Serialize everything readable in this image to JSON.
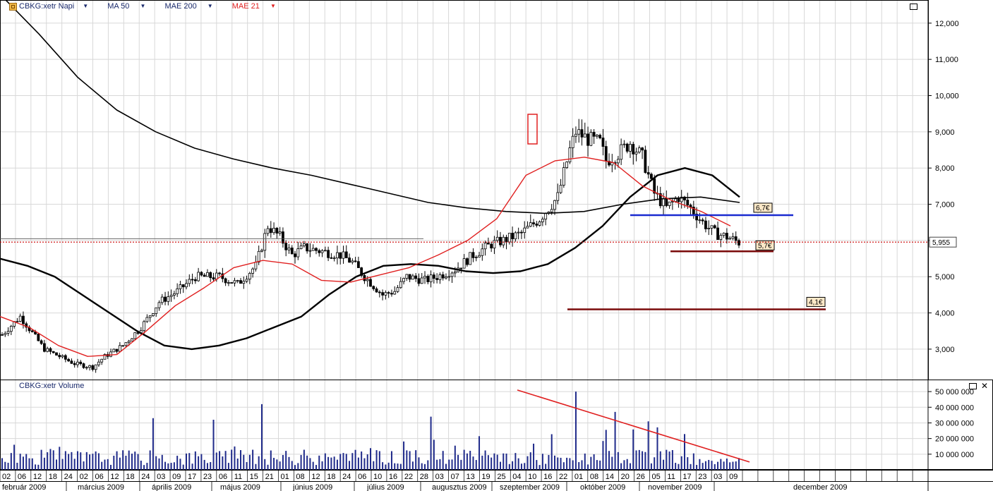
{
  "legend": {
    "ticker": "CBKG:xetr Napi",
    "ma50": "MA 50",
    "mae200": "MAE 200",
    "mae21": "MAE 21",
    "volume_title": "CBKG:xetr Volume"
  },
  "colors": {
    "candle": "#000000",
    "ma50": "#000000",
    "mae200": "#000000",
    "mae21": "#e02020",
    "volume": "#1f2a8a",
    "trend": "#e02020",
    "blue_level": "#1a2ad0",
    "dark_red_level": "#7a0a0a",
    "current_price_line": "#cc0000",
    "grid": "#d8d8d8"
  },
  "chart_data": [
    {
      "type": "candlestick",
      "name": "price",
      "y_ticks": [
        "12,000",
        "11,000",
        "10,000",
        "9,000",
        "8,000",
        "7,000",
        "6,000",
        "5,000",
        "4,000",
        "3,000"
      ],
      "y_tick_values": [
        12,
        11,
        10,
        9,
        8,
        7,
        6,
        5,
        4,
        3
      ],
      "ylim": [
        2.2,
        12.6
      ],
      "current_price_label": "5,955",
      "current_price": 5.955,
      "x_day_labels": [
        "02",
        "06",
        "12",
        "18",
        "24",
        "02",
        "06",
        "12",
        "18",
        "24",
        "03",
        "09",
        "17",
        "23",
        "06",
        "11",
        "15",
        "21",
        "01",
        "08",
        "12",
        "18",
        "24",
        "06",
        "10",
        "16",
        "22",
        "28",
        "03",
        "07",
        "13",
        "19",
        "25",
        "04",
        "10",
        "16",
        "22",
        "01",
        "08",
        "14",
        "20",
        "26",
        "05",
        "11",
        "17",
        "23",
        "03",
        "09"
      ],
      "x_month_labels": [
        "február 2009",
        "március 2009",
        "április 2009",
        "május 2009",
        "június 2009",
        "július 2009",
        "augusztus 2009",
        "szeptember 2009",
        "október 2009",
        "november 2009",
        "december 2009"
      ],
      "ma_50": [
        5.5,
        5.3,
        5.0,
        4.5,
        4.0,
        3.5,
        3.1,
        3.0,
        3.1,
        3.3,
        3.6,
        3.9,
        4.5,
        5.0,
        5.3,
        5.35,
        5.3,
        5.15,
        5.1,
        5.15,
        5.35,
        5.8,
        6.4,
        7.2,
        7.8,
        8.0,
        7.8,
        7.2
      ],
      "mae_200": [
        12.8,
        11.7,
        10.5,
        9.6,
        9.0,
        8.55,
        8.25,
        8.0,
        7.8,
        7.55,
        7.3,
        7.05,
        6.9,
        6.8,
        6.75,
        6.8,
        7.0,
        7.15,
        7.2,
        7.05
      ],
      "mae_21": [
        3.9,
        3.6,
        3.1,
        2.8,
        2.85,
        3.5,
        4.2,
        4.7,
        5.25,
        5.45,
        5.35,
        4.9,
        4.85,
        5.05,
        5.25,
        5.6,
        6.0,
        6.6,
        7.8,
        8.2,
        8.3,
        8.15,
        7.5,
        7.1,
        6.8,
        6.4
      ],
      "annotations": [
        {
          "label": "6,7€",
          "value": 6.7,
          "color": "#1a2ad0"
        },
        {
          "label": "5,7€",
          "value": 5.7,
          "color": "#7a0a0a"
        },
        {
          "label": "4,1€",
          "value": 4.1,
          "color": "#7a0a0a"
        }
      ]
    },
    {
      "type": "bar",
      "name": "volume",
      "y_ticks": [
        "50 000 000",
        "40 000 000",
        "30 000 000",
        "20 000 000",
        "10 000 000"
      ],
      "y_tick_values": [
        50000000,
        40000000,
        30000000,
        20000000,
        10000000
      ],
      "ylim": [
        0,
        55000000
      ],
      "trend_line": {
        "from": 51000000,
        "to": 5000000
      }
    }
  ]
}
